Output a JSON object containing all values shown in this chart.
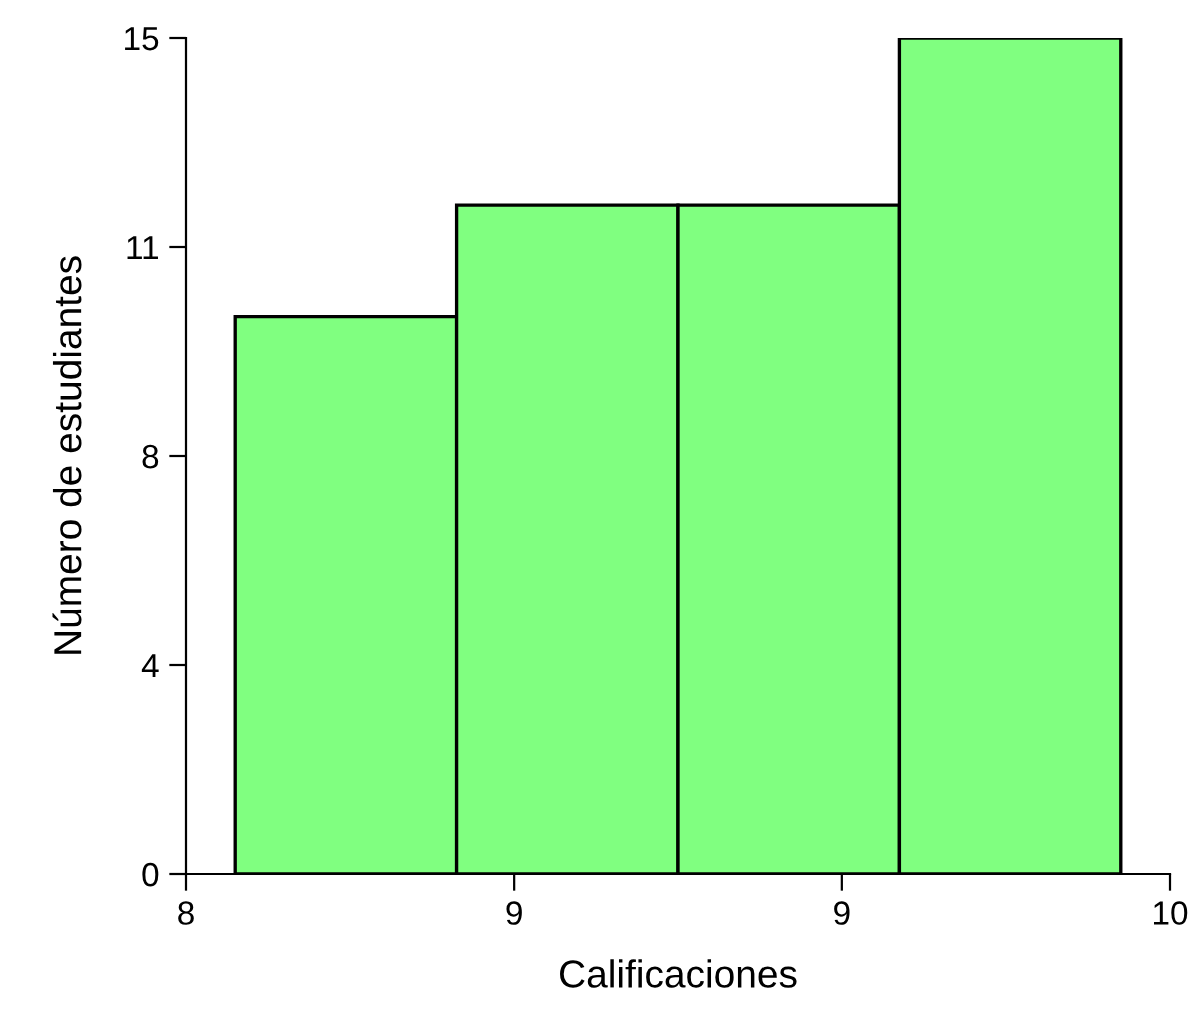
{
  "chart_data": {
    "type": "histogram",
    "xlabel": "Calificaciones",
    "ylabel": "Número de estudiantes",
    "bins": [
      8.1,
      8.55,
      9.0,
      9.45,
      9.9
    ],
    "values": [
      10,
      12,
      12,
      15
    ],
    "color": "#80ff80",
    "xlim": [
      8,
      10
    ],
    "xticks": [
      8,
      {
        "value": 8.667,
        "label": "9"
      },
      {
        "value": 9.333,
        "label": "9"
      },
      10
    ],
    "ylim": [
      0,
      15
    ],
    "yticks": [
      0,
      {
        "value": 3.75,
        "label": "4"
      },
      {
        "value": 7.5,
        "label": "8"
      },
      {
        "value": 11.25,
        "label": "11"
      },
      15
    ],
    "grid": false
  }
}
